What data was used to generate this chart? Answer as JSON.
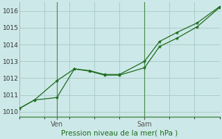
{
  "bg_color": "#cde8e8",
  "grid_color": "#aacccc",
  "line_color": "#1a6b1a",
  "marker_color": "#1a6b1a",
  "title": "Pression niveau de la mer( hPa )",
  "ylim": [
    1009.7,
    1016.5
  ],
  "yticks": [
    1010,
    1011,
    1012,
    1013,
    1014,
    1015,
    1016
  ],
  "xlim": [
    0,
    8
  ],
  "x_ven_pos": 1.5,
  "x_sam_pos": 5.0,
  "xtick_positions": [
    1.5,
    5.0
  ],
  "xtick_labels": [
    "Ven",
    "Sam"
  ],
  "xgrid_positions": [
    0,
    1,
    2,
    3,
    4,
    5,
    6,
    7,
    8
  ],
  "series1_x": [
    0.0,
    0.6,
    1.5,
    2.2,
    2.8,
    3.4,
    4.0,
    5.0,
    5.6,
    6.3,
    7.1,
    8.0
  ],
  "series1_y": [
    1010.2,
    1010.7,
    1010.85,
    1012.55,
    1012.42,
    1012.18,
    1012.18,
    1012.62,
    1013.88,
    1014.38,
    1015.05,
    1016.2
  ],
  "series2_x": [
    0.0,
    0.6,
    1.5,
    2.2,
    2.8,
    3.4,
    4.0,
    5.0,
    5.6,
    6.3,
    7.1,
    8.0
  ],
  "series2_y": [
    1010.2,
    1010.7,
    1011.85,
    1012.55,
    1012.45,
    1012.22,
    1012.22,
    1013.0,
    1014.18,
    1014.72,
    1015.28,
    1016.25
  ]
}
